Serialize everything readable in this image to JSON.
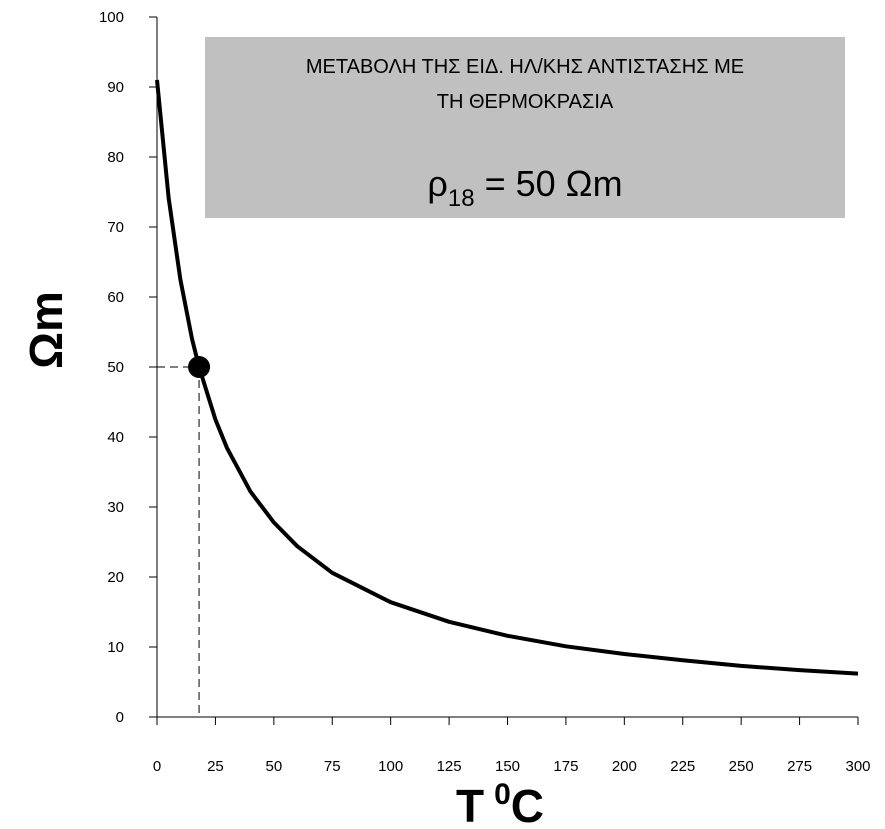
{
  "chart_data": {
    "type": "line",
    "title_lines": [
      "ΜΕΤΑΒΟΛΗ ΤΗΣ ΕΙΔ. ΗΛ/ΚΗΣ ΑΝΤΙΣΤΑΣΗΣ ΜΕ",
      "ΤΗ ΘΕΡΜΟΚΡΑΣΙΑ"
    ],
    "annotation": {
      "symbol": "ρ",
      "subscript": "18",
      "text": "= 50 Ωm"
    },
    "ylabel": "Ωm",
    "xlabel": {
      "text": "T",
      "superscript": "0",
      "unit": "C"
    },
    "x": [
      0,
      5,
      10,
      15,
      18,
      25,
      30,
      40,
      50,
      60,
      75,
      100,
      125,
      150,
      175,
      200,
      225,
      250,
      275,
      300
    ],
    "series": [
      {
        "name": "ρ",
        "color": "#000000",
        "values": [
          91.0,
          74.1,
          62.5,
          54.0,
          50.0,
          42.5,
          38.4,
          32.2,
          27.8,
          24.4,
          20.6,
          16.4,
          13.6,
          11.6,
          10.1,
          9.0,
          8.1,
          7.3,
          6.7,
          6.2
        ]
      }
    ],
    "highlight": {
      "x": 18,
      "y": 50
    },
    "xlim": [
      0,
      300
    ],
    "ylim": [
      0,
      100
    ],
    "xticks": [
      0,
      25,
      50,
      75,
      100,
      125,
      150,
      175,
      200,
      225,
      250,
      275,
      300
    ],
    "yticks": [
      0,
      10,
      20,
      30,
      40,
      50,
      60,
      70,
      80,
      90,
      100
    ],
    "grid": false
  }
}
